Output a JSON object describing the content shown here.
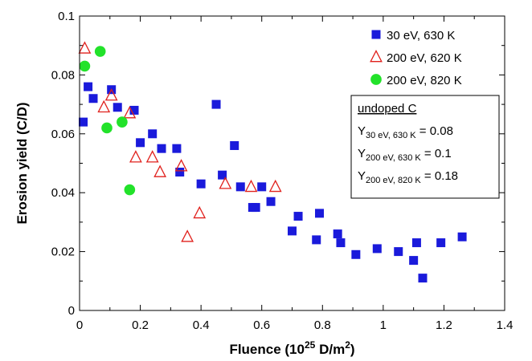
{
  "chart_data": {
    "type": "scatter",
    "title": "",
    "xlabel": {
      "prefix": "Fluence (10",
      "sup": "25",
      "mid": " D/m",
      "sup2": "2",
      "suffix": ")"
    },
    "ylabel": "Erosion yield (C/D)",
    "xlim": [
      0,
      1.4
    ],
    "ylim": [
      0,
      0.1
    ],
    "x_ticks": [
      "0",
      "0.2",
      "0.4",
      "0.6",
      "0.8",
      "1",
      "1.2",
      "1.4"
    ],
    "y_ticks": [
      "0",
      "0.02",
      "0.04",
      "0.06",
      "0.08",
      "0.1"
    ],
    "legend_position": "top-right",
    "series": [
      {
        "name": "30 eV, 630 K",
        "marker": "square",
        "color": "#1a1adb",
        "points": [
          [
            0.012,
            0.064
          ],
          [
            0.028,
            0.076
          ],
          [
            0.045,
            0.072
          ],
          [
            0.105,
            0.075
          ],
          [
            0.125,
            0.069
          ],
          [
            0.18,
            0.068
          ],
          [
            0.2,
            0.057
          ],
          [
            0.24,
            0.06
          ],
          [
            0.27,
            0.055
          ],
          [
            0.32,
            0.055
          ],
          [
            0.33,
            0.047
          ],
          [
            0.4,
            0.043
          ],
          [
            0.45,
            0.07
          ],
          [
            0.47,
            0.046
          ],
          [
            0.51,
            0.056
          ],
          [
            0.53,
            0.042
          ],
          [
            0.57,
            0.035
          ],
          [
            0.58,
            0.035
          ],
          [
            0.6,
            0.042
          ],
          [
            0.63,
            0.037
          ],
          [
            0.7,
            0.027
          ],
          [
            0.72,
            0.032
          ],
          [
            0.78,
            0.024
          ],
          [
            0.79,
            0.033
          ],
          [
            0.85,
            0.026
          ],
          [
            0.86,
            0.023
          ],
          [
            0.91,
            0.019
          ],
          [
            0.98,
            0.021
          ],
          [
            1.05,
            0.02
          ],
          [
            1.1,
            0.017
          ],
          [
            1.11,
            0.023
          ],
          [
            1.13,
            0.011
          ],
          [
            1.19,
            0.023
          ],
          [
            1.26,
            0.025
          ]
        ]
      },
      {
        "name": "200 eV, 620 K",
        "marker": "triangle",
        "color": "#e0201c",
        "points": [
          [
            0.017,
            0.089
          ],
          [
            0.08,
            0.069
          ],
          [
            0.105,
            0.073
          ],
          [
            0.165,
            0.067
          ],
          [
            0.185,
            0.052
          ],
          [
            0.24,
            0.052
          ],
          [
            0.265,
            0.047
          ],
          [
            0.335,
            0.049
          ],
          [
            0.355,
            0.025
          ],
          [
            0.395,
            0.033
          ],
          [
            0.48,
            0.043
          ],
          [
            0.565,
            0.042
          ],
          [
            0.645,
            0.042
          ]
        ]
      },
      {
        "name": "200 eV, 820 K",
        "marker": "circle",
        "color": "#22e22a",
        "points": [
          [
            0.017,
            0.083
          ],
          [
            0.068,
            0.088
          ],
          [
            0.09,
            0.062
          ],
          [
            0.14,
            0.064
          ],
          [
            0.165,
            0.041
          ]
        ]
      }
    ],
    "annotation": {
      "heading": "undoped C",
      "lines": [
        {
          "base": "Y",
          "sub": "30 eV, 630 K",
          "value": " = 0.08"
        },
        {
          "base": "Y",
          "sub": "200 eV, 630 K",
          "value": " = 0.1"
        },
        {
          "base": "Y",
          "sub": "200 eV, 820 K",
          "value": " = 0.18"
        }
      ]
    }
  }
}
